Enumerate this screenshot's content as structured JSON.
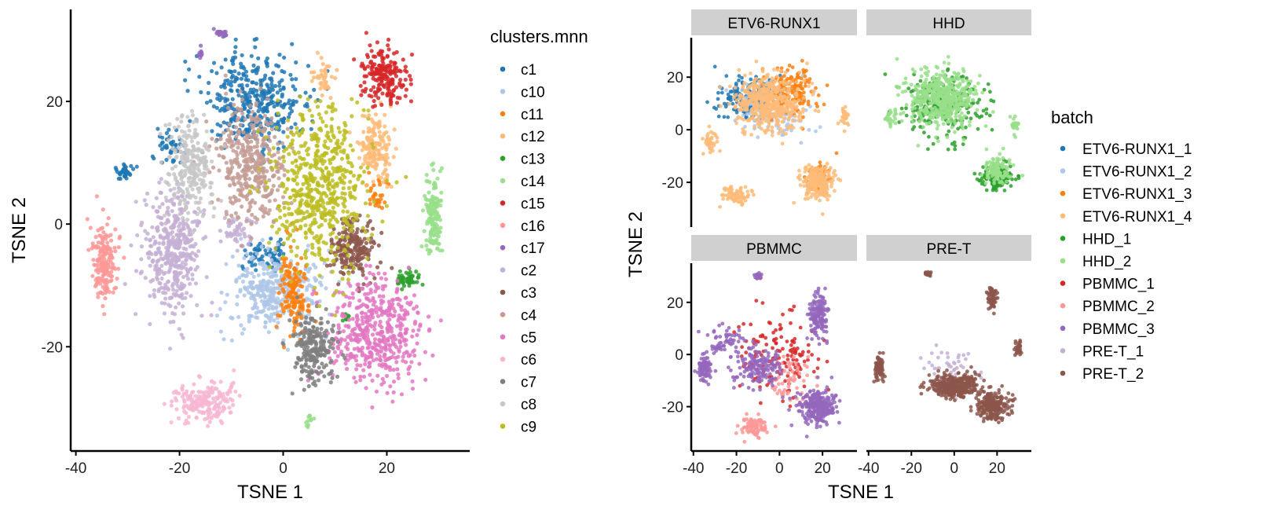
{
  "chart_data": [
    {
      "type": "scatter",
      "xlabel": "TSNE 1",
      "ylabel": "TSNE 2",
      "xticks": [
        -40,
        -20,
        0,
        20
      ],
      "yticks": [
        20,
        0,
        -20
      ],
      "xlim": [
        -41,
        36
      ],
      "ylim": [
        -37,
        35
      ],
      "legend": {
        "title": "clusters.mnn",
        "position": "right",
        "entries": [
          {
            "label": "c1",
            "color": "#1f77b4"
          },
          {
            "label": "c10",
            "color": "#aec7e8"
          },
          {
            "label": "c11",
            "color": "#ff7f0e"
          },
          {
            "label": "c12",
            "color": "#ffbb78"
          },
          {
            "label": "c13",
            "color": "#2ca02c"
          },
          {
            "label": "c14",
            "color": "#98df8a"
          },
          {
            "label": "c15",
            "color": "#d62728"
          },
          {
            "label": "c16",
            "color": "#ff9896"
          },
          {
            "label": "c17",
            "color": "#9467bd"
          },
          {
            "label": "c2",
            "color": "#c5b0d5"
          },
          {
            "label": "c3",
            "color": "#8c564b"
          },
          {
            "label": "c4",
            "color": "#c49c94"
          },
          {
            "label": "c5",
            "color": "#e377c2"
          },
          {
            "label": "c6",
            "color": "#f7b6d2"
          },
          {
            "label": "c7",
            "color": "#7f7f7f"
          },
          {
            "label": "c8",
            "color": "#c7c7c7"
          },
          {
            "label": "c9",
            "color": "#bcbd22"
          }
        ]
      },
      "clusters": [
        {
          "label": "c1",
          "color": "#1f77b4",
          "blobs": [
            [
              -6,
              20,
              9,
              7,
              380
            ],
            [
              -30.5,
              8.5,
              1.8,
              1.2,
              40
            ],
            [
              -3,
              -5,
              4,
              2,
              70
            ],
            [
              -22,
              13,
              3,
              3,
              40
            ]
          ]
        },
        {
          "label": "c10",
          "color": "#aec7e8",
          "blobs": [
            [
              -2,
              -11,
              8,
              6,
              350
            ]
          ]
        },
        {
          "label": "c11",
          "color": "#ff7f0e",
          "blobs": [
            [
              2,
              -11,
              2.5,
              6.5,
              150
            ],
            [
              18,
              5,
              2,
              2.5,
              30
            ]
          ]
        },
        {
          "label": "c12",
          "color": "#ffbb78",
          "blobs": [
            [
              18,
              12,
              3,
              5,
              160
            ],
            [
              8,
              24,
              2,
              3,
              40
            ]
          ]
        },
        {
          "label": "c13",
          "color": "#2ca02c",
          "blobs": [
            [
              24,
              -9,
              2,
              1.3,
              50
            ],
            [
              12,
              -15,
              1,
              1,
              10
            ]
          ]
        },
        {
          "label": "c14",
          "color": "#98df8a",
          "blobs": [
            [
              29,
              1,
              1.5,
              6.5,
              150
            ],
            [
              5,
              -32,
              1,
              1.5,
              12
            ]
          ]
        },
        {
          "label": "c15",
          "color": "#d62728",
          "blobs": [
            [
              19.5,
              24,
              4,
              4,
              200
            ]
          ]
        },
        {
          "label": "c16",
          "color": "#ff9896",
          "blobs": [
            [
              -34.5,
              -6,
              2.2,
              5.5,
              180
            ]
          ]
        },
        {
          "label": "c17",
          "color": "#9467bd",
          "blobs": [
            [
              -12,
              31,
              1.2,
              0.6,
              20
            ],
            [
              -16,
              28,
              0.4,
              1,
              8
            ]
          ]
        },
        {
          "label": "c2",
          "color": "#c5b0d5",
          "blobs": [
            [
              -21,
              -5,
              5,
              9,
              420
            ],
            [
              -9,
              -1,
              2.5,
              2,
              50
            ]
          ]
        },
        {
          "label": "c3",
          "color": "#8c564b",
          "blobs": [
            [
              13.5,
              -4,
              4,
              4.5,
              200
            ]
          ]
        },
        {
          "label": "c4",
          "color": "#c49c94",
          "blobs": [
            [
              -6,
              10,
              6,
              8,
              380
            ]
          ]
        },
        {
          "label": "c5",
          "color": "#e377c2",
          "blobs": [
            [
              18,
              -18,
              8,
              8,
              480
            ]
          ]
        },
        {
          "label": "c6",
          "color": "#f7b6d2",
          "blobs": [
            [
              -15,
              -29,
              6,
              3,
              200
            ]
          ]
        },
        {
          "label": "c7",
          "color": "#7f7f7f",
          "blobs": [
            [
              6,
              -20,
              4,
              5,
              220
            ]
          ]
        },
        {
          "label": "c8",
          "color": "#c7c7c7",
          "blobs": [
            [
              -18,
              9,
              4,
              7,
              250
            ]
          ]
        },
        {
          "label": "c9",
          "color": "#bcbd22",
          "blobs": [
            [
              7,
              6,
              8,
              12,
              600
            ]
          ]
        }
      ]
    },
    {
      "type": "scatter",
      "xlabel": "TSNE 1",
      "ylabel": "TSNE 2",
      "xticks": [
        -40,
        -20,
        0,
        20
      ],
      "yticks": [
        20,
        0,
        -20
      ],
      "xlim": [
        -41,
        36
      ],
      "ylim": [
        -37,
        35
      ],
      "legend": {
        "title": "batch",
        "position": "right",
        "entries": [
          {
            "label": "ETV6-RUNX1_1",
            "color": "#1f77b4"
          },
          {
            "label": "ETV6-RUNX1_2",
            "color": "#aec7e8"
          },
          {
            "label": "ETV6-RUNX1_3",
            "color": "#ff7f0e"
          },
          {
            "label": "ETV6-RUNX1_4",
            "color": "#ffbb78"
          },
          {
            "label": "HHD_1",
            "color": "#2ca02c"
          },
          {
            "label": "HHD_2",
            "color": "#98df8a"
          },
          {
            "label": "PBMMC_1",
            "color": "#d62728"
          },
          {
            "label": "PBMMC_2",
            "color": "#ff9896"
          },
          {
            "label": "PBMMC_3",
            "color": "#9467bd"
          },
          {
            "label": "PRE-T_1",
            "color": "#c5b0d5"
          },
          {
            "label": "PRE-T_2",
            "color": "#8c564b"
          }
        ]
      },
      "facets": [
        {
          "label": "ETV6-RUNX1",
          "layers": [
            {
              "color": "#1f77b4",
              "blobs": [
                [
                  -15,
                  12,
                  12,
                  8,
                  140
                ]
              ]
            },
            {
              "color": "#aec7e8",
              "blobs": [
                [
                  -2,
                  8,
                  14,
                  10,
                  120
                ]
              ]
            },
            {
              "color": "#ff7f0e",
              "blobs": [
                [
                  5,
                  15,
                  10,
                  8,
                  160
                ],
                [
                  18,
                  -18,
                  6,
                  5,
                  60
                ]
              ]
            },
            {
              "color": "#ffbb78",
              "blobs": [
                [
                  -5,
                  10,
                  14,
                  10,
                  450
                ],
                [
                  18,
                  -20,
                  7,
                  6,
                  200
                ],
                [
                  -20,
                  -25,
                  6,
                  3,
                  80
                ],
                [
                  -32,
                  -5,
                  3,
                  4,
                  40
                ],
                [
                  30,
                  5,
                  1.5,
                  4,
                  25
                ]
              ]
            }
          ]
        },
        {
          "label": "HHD",
          "layers": [
            {
              "color": "#2ca02c",
              "blobs": [
                [
                  -5,
                  10,
                  16,
                  11,
                  260
                ],
                [
                  20,
                  -18,
                  7,
                  5,
                  120
                ]
              ]
            },
            {
              "color": "#98df8a",
              "blobs": [
                [
                  -5,
                  12,
                  14,
                  10,
                  500
                ],
                [
                  20,
                  -15,
                  6,
                  5,
                  100
                ],
                [
                  -30,
                  5,
                  3,
                  3,
                  25
                ],
                [
                  28,
                  2,
                  2,
                  3,
                  20
                ]
              ]
            }
          ]
        },
        {
          "label": "PBMMC",
          "layers": [
            {
              "color": "#d62728",
              "blobs": [
                [
                  0,
                  0,
                  18,
                  16,
                  140
                ]
              ]
            },
            {
              "color": "#ff9896",
              "blobs": [
                [
                  -12,
                  -28,
                  6,
                  4,
                  80
                ],
                [
                  5,
                  -10,
                  10,
                  8,
                  60
                ]
              ]
            },
            {
              "color": "#9467bd",
              "blobs": [
                [
                  18,
                  15,
                  4,
                  8,
                  150
                ],
                [
                  18,
                  -20,
                  8,
                  6,
                  280
                ],
                [
                  -35,
                  -5,
                  2.5,
                  4,
                  90
                ],
                [
                  -10,
                  -5,
                  10,
                  6,
                  150
                ],
                [
                  -10,
                  30,
                  1.5,
                  1,
                  20
                ],
                [
                  -25,
                  5,
                  8,
                  5,
                  60
                ]
              ]
            }
          ]
        },
        {
          "label": "PRE-T",
          "layers": [
            {
              "color": "#c5b0d5",
              "blobs": [
                [
                  0,
                  -5,
                  12,
                  8,
                  60
                ]
              ]
            },
            {
              "color": "#8c564b",
              "blobs": [
                [
                  0,
                  -12,
                  10,
                  4,
                  350
                ],
                [
                  18,
                  -20,
                  7,
                  5,
                  240
                ],
                [
                  -35,
                  -5,
                  2,
                  4,
                  80
                ],
                [
                  18,
                  22,
                  2.5,
                  4,
                  60
                ],
                [
                  -12,
                  31,
                  1.5,
                  0.7,
                  20
                ],
                [
                  30,
                  2,
                  1.5,
                  3,
                  30
                ]
              ]
            }
          ]
        }
      ]
    }
  ]
}
